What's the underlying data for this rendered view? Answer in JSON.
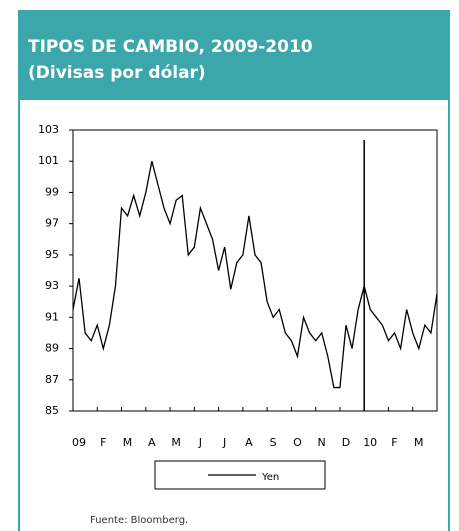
{
  "chart_data": {
    "type": "line",
    "title": "TIPOS DE CAMBIO, 2009-2010",
    "subtitle": "(Divisas por dólar)",
    "source": "Fuente: Bloomberg.",
    "x": [
      0,
      0.25,
      0.5,
      0.75,
      1,
      1.25,
      1.5,
      1.75,
      2,
      2.25,
      2.5,
      2.75,
      3,
      3.25,
      3.5,
      3.75,
      4,
      4.25,
      4.5,
      4.75,
      5,
      5.25,
      5.5,
      5.75,
      6,
      6.25,
      6.5,
      6.75,
      7,
      7.25,
      7.5,
      7.75,
      8,
      8.25,
      8.5,
      8.75,
      9,
      9.25,
      9.5,
      9.75,
      10,
      10.25,
      10.5,
      10.75,
      11,
      11.25,
      11.5,
      11.75,
      12,
      12.25,
      12.5,
      12.75,
      13,
      13.25,
      13.5,
      13.75,
      14,
      14.25,
      14.5,
      14.75,
      15
    ],
    "series": [
      {
        "name": "Yen",
        "color": "#000000",
        "values": [
          91.5,
          93.5,
          90,
          89.5,
          90.5,
          89,
          90.5,
          93,
          98,
          97.5,
          98.8,
          97.5,
          99,
          101,
          99.5,
          98,
          97,
          98.5,
          98.8,
          95,
          95.5,
          98,
          97,
          96,
          94,
          95.5,
          92.8,
          94.5,
          95,
          97.5,
          95,
          94.5,
          92,
          91,
          91.5,
          90,
          89.5,
          88.5,
          91,
          90,
          89.5,
          90,
          88.5,
          86.5,
          86.5,
          90.5,
          89,
          91.5,
          93,
          91.5,
          91,
          90.5,
          89.5,
          90,
          89,
          91.5,
          90,
          89,
          90.5,
          90,
          92.5
        ]
      }
    ],
    "xlim": [
      0,
      15
    ],
    "xticks": [
      {
        "value": 0,
        "label": "09"
      },
      {
        "value": 1,
        "label": "F"
      },
      {
        "value": 2,
        "label": "M"
      },
      {
        "value": 3,
        "label": "A"
      },
      {
        "value": 4,
        "label": "M"
      },
      {
        "value": 5,
        "label": "J"
      },
      {
        "value": 6,
        "label": "J"
      },
      {
        "value": 7,
        "label": "A"
      },
      {
        "value": 8,
        "label": "S"
      },
      {
        "value": 9,
        "label": "O"
      },
      {
        "value": 10,
        "label": "N"
      },
      {
        "value": 11,
        "label": "D"
      },
      {
        "value": 12,
        "label": "10"
      },
      {
        "value": 13,
        "label": "F"
      },
      {
        "value": 14,
        "label": "M"
      }
    ],
    "ylim": [
      85,
      103
    ],
    "yticks": [
      85,
      87,
      89,
      91,
      93,
      95,
      97,
      99,
      101,
      103
    ],
    "vline": 12,
    "header_color": "#3ba7ab"
  }
}
